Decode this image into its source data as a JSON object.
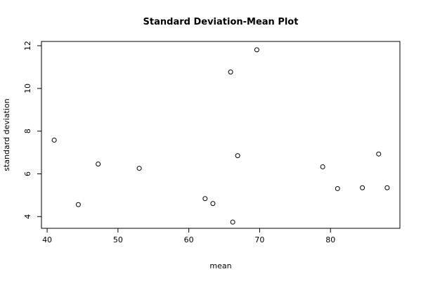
{
  "chart_data": {
    "type": "scatter",
    "title": "Standard Deviation-Mean Plot",
    "xlabel": "mean",
    "ylabel": "standard deviation",
    "xlim": [
      39.2,
      89.8
    ],
    "ylim": [
      3.45,
      12.2
    ],
    "x_ticks": [
      40,
      50,
      60,
      70,
      80
    ],
    "y_ticks": [
      4,
      6,
      8,
      10,
      12
    ],
    "grid": false,
    "points": [
      {
        "x": 41.0,
        "y": 7.58
      },
      {
        "x": 44.4,
        "y": 4.56
      },
      {
        "x": 47.2,
        "y": 6.46
      },
      {
        "x": 53.0,
        "y": 6.26
      },
      {
        "x": 62.3,
        "y": 4.84
      },
      {
        "x": 63.4,
        "y": 4.61
      },
      {
        "x": 65.9,
        "y": 10.77
      },
      {
        "x": 66.2,
        "y": 3.74
      },
      {
        "x": 66.9,
        "y": 6.85
      },
      {
        "x": 69.6,
        "y": 11.81
      },
      {
        "x": 78.9,
        "y": 6.33
      },
      {
        "x": 81.0,
        "y": 5.31
      },
      {
        "x": 84.5,
        "y": 5.35
      },
      {
        "x": 86.8,
        "y": 6.93
      },
      {
        "x": 88.0,
        "y": 5.35
      }
    ]
  }
}
